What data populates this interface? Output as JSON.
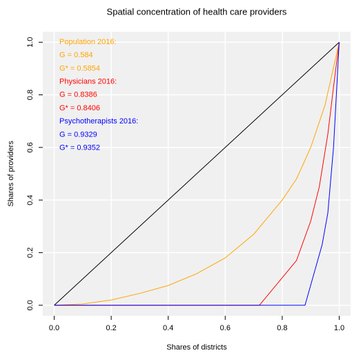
{
  "chart_data": {
    "type": "line",
    "title": "Spatial concentration of health care providers",
    "xlabel": "Shares of districts",
    "ylabel": "Shares of providers",
    "xlim": [
      -0.04,
      1.04
    ],
    "ylim": [
      -0.04,
      1.04
    ],
    "xticks": [
      {
        "value": 0,
        "label": "0.0"
      },
      0.2,
      0.4,
      0.6,
      0.8,
      {
        "value": 1,
        "label": "1.0"
      }
    ],
    "yticks": [
      {
        "value": 0,
        "label": "0.0"
      },
      0.2,
      0.4,
      0.6,
      0.8,
      {
        "value": 1,
        "label": "1.0"
      }
    ],
    "grid": true,
    "series": [
      {
        "color": "#000000",
        "x": [
          0,
          1
        ],
        "values": [
          0,
          1
        ]
      },
      {
        "color": "#ffa500",
        "x": [
          0,
          0.1,
          0.2,
          0.3,
          0.4,
          0.5,
          0.6,
          0.7,
          0.8,
          0.85,
          0.9,
          0.95,
          1
        ],
        "values": [
          0,
          0.005,
          0.02,
          0.045,
          0.075,
          0.12,
          0.18,
          0.27,
          0.4,
          0.48,
          0.6,
          0.76,
          1
        ]
      },
      {
        "color": "#ff0000",
        "x": [
          0,
          0.72,
          0.85,
          0.9,
          0.93,
          0.96,
          0.98,
          1
        ],
        "values": [
          0,
          0,
          0.17,
          0.32,
          0.45,
          0.65,
          0.83,
          1
        ]
      },
      {
        "color": "#0000ff",
        "x": [
          0,
          0.88,
          0.94,
          0.96,
          0.98,
          0.99,
          1
        ],
        "values": [
          0,
          0,
          0.23,
          0.35,
          0.6,
          0.8,
          1
        ]
      }
    ],
    "annotations": [
      {
        "text": "Population 2016:",
        "color": "#ffa500"
      },
      {
        "text": "G = 0.584",
        "color": "#ffa500"
      },
      {
        "text": "G* = 0.5854",
        "color": "#ffa500"
      },
      {
        "text": "Physicians 2016:",
        "color": "#ff0000"
      },
      {
        "text": "G = 0.8386",
        "color": "#ff0000"
      },
      {
        "text": "G* = 0.8406",
        "color": "#ff0000"
      },
      {
        "text": "Psychotherapists 2016:",
        "color": "#0000ff"
      },
      {
        "text": "G = 0.9329",
        "color": "#0000ff"
      },
      {
        "text": "G* = 0.9352",
        "color": "#0000ff"
      }
    ]
  }
}
